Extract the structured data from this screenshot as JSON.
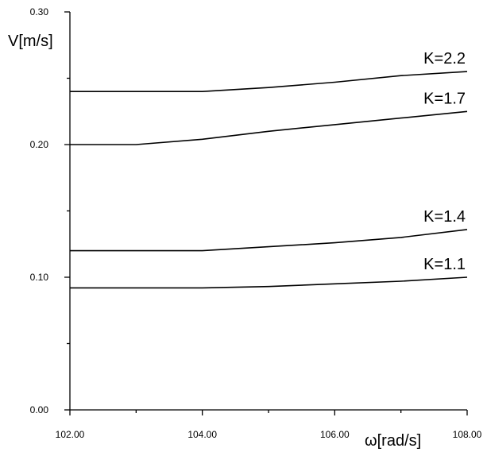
{
  "chart_data": {
    "type": "line",
    "xlabel": "ω[rad/s]",
    "ylabel": "V[m/s]",
    "xlim": [
      102,
      108
    ],
    "ylim": [
      0,
      0.3
    ],
    "x_ticks": [
      "102.00",
      "104.00",
      "106.00",
      "108.00"
    ],
    "y_ticks": [
      "0.00",
      "0.10",
      "0.20",
      "0.30"
    ],
    "grid": false,
    "legend": "none",
    "series": [
      {
        "name": "K=2.2",
        "x": [
          102,
          103,
          104,
          105,
          106,
          107,
          108
        ],
        "y": [
          0.24,
          0.24,
          0.24,
          0.243,
          0.247,
          0.252,
          0.255
        ]
      },
      {
        "name": "K=1.7",
        "x": [
          102,
          103,
          104,
          105,
          106,
          107,
          108
        ],
        "y": [
          0.2,
          0.2,
          0.204,
          0.21,
          0.215,
          0.22,
          0.225
        ]
      },
      {
        "name": "K=1.4",
        "x": [
          102,
          103,
          104,
          105,
          106,
          107,
          108
        ],
        "y": [
          0.12,
          0.12,
          0.12,
          0.123,
          0.126,
          0.13,
          0.136
        ]
      },
      {
        "name": "K=1.1",
        "x": [
          102,
          103,
          104,
          105,
          106,
          107,
          108
        ],
        "y": [
          0.092,
          0.092,
          0.092,
          0.093,
          0.095,
          0.097,
          0.1
        ]
      }
    ]
  }
}
